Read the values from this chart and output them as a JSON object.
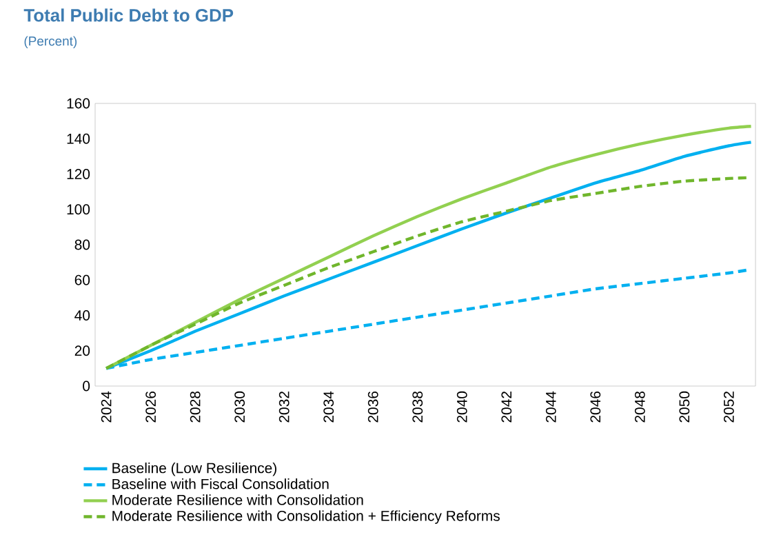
{
  "chart_data": {
    "type": "line",
    "title": "Total Public Debt to GDP",
    "subtitle": "(Percent)",
    "x": [
      2024,
      2026,
      2028,
      2030,
      2032,
      2034,
      2036,
      2038,
      2040,
      2042,
      2044,
      2046,
      2048,
      2050,
      2052,
      2053
    ],
    "xlim": [
      2023.5,
      2053.2
    ],
    "xticks": [
      2024,
      2026,
      2028,
      2030,
      2032,
      2034,
      2036,
      2038,
      2040,
      2042,
      2044,
      2046,
      2048,
      2050,
      2052
    ],
    "ylim": [
      0,
      160
    ],
    "yticks": [
      0,
      20,
      40,
      60,
      80,
      100,
      120,
      140,
      160
    ],
    "grid": false,
    "legend": "bottom",
    "marker": "none",
    "series": [
      {
        "name": "Baseline (Low Resilience)",
        "color": "#00b0f0",
        "line_style": "solid",
        "values": [
          10,
          20,
          31,
          41,
          51,
          60.5,
          70,
          79.5,
          89,
          98,
          106.5,
          115,
          122,
          130,
          136,
          138
        ]
      },
      {
        "name": "Baseline with Fiscal Consolidation",
        "color": "#00b0f0",
        "line_style": "dashed",
        "values": [
          10,
          15,
          19,
          23,
          27,
          31,
          35,
          39,
          43,
          47,
          51,
          55,
          58,
          61,
          64,
          66
        ]
      },
      {
        "name": "Moderate Resilience with Consolidation",
        "color": "#92d050",
        "line_style": "solid",
        "values": [
          10,
          23,
          36,
          49,
          61,
          73,
          85,
          96,
          106,
          115,
          124,
          131,
          137,
          142,
          146,
          147
        ]
      },
      {
        "name": "Moderate Resilience with Consolidation + Efficiency Reforms",
        "color": "#70b62c",
        "line_style": "dashed",
        "values": [
          10,
          23,
          35,
          47,
          57,
          67,
          76,
          85,
          93,
          99,
          105,
          109,
          113,
          116,
          117.5,
          118
        ]
      }
    ]
  }
}
